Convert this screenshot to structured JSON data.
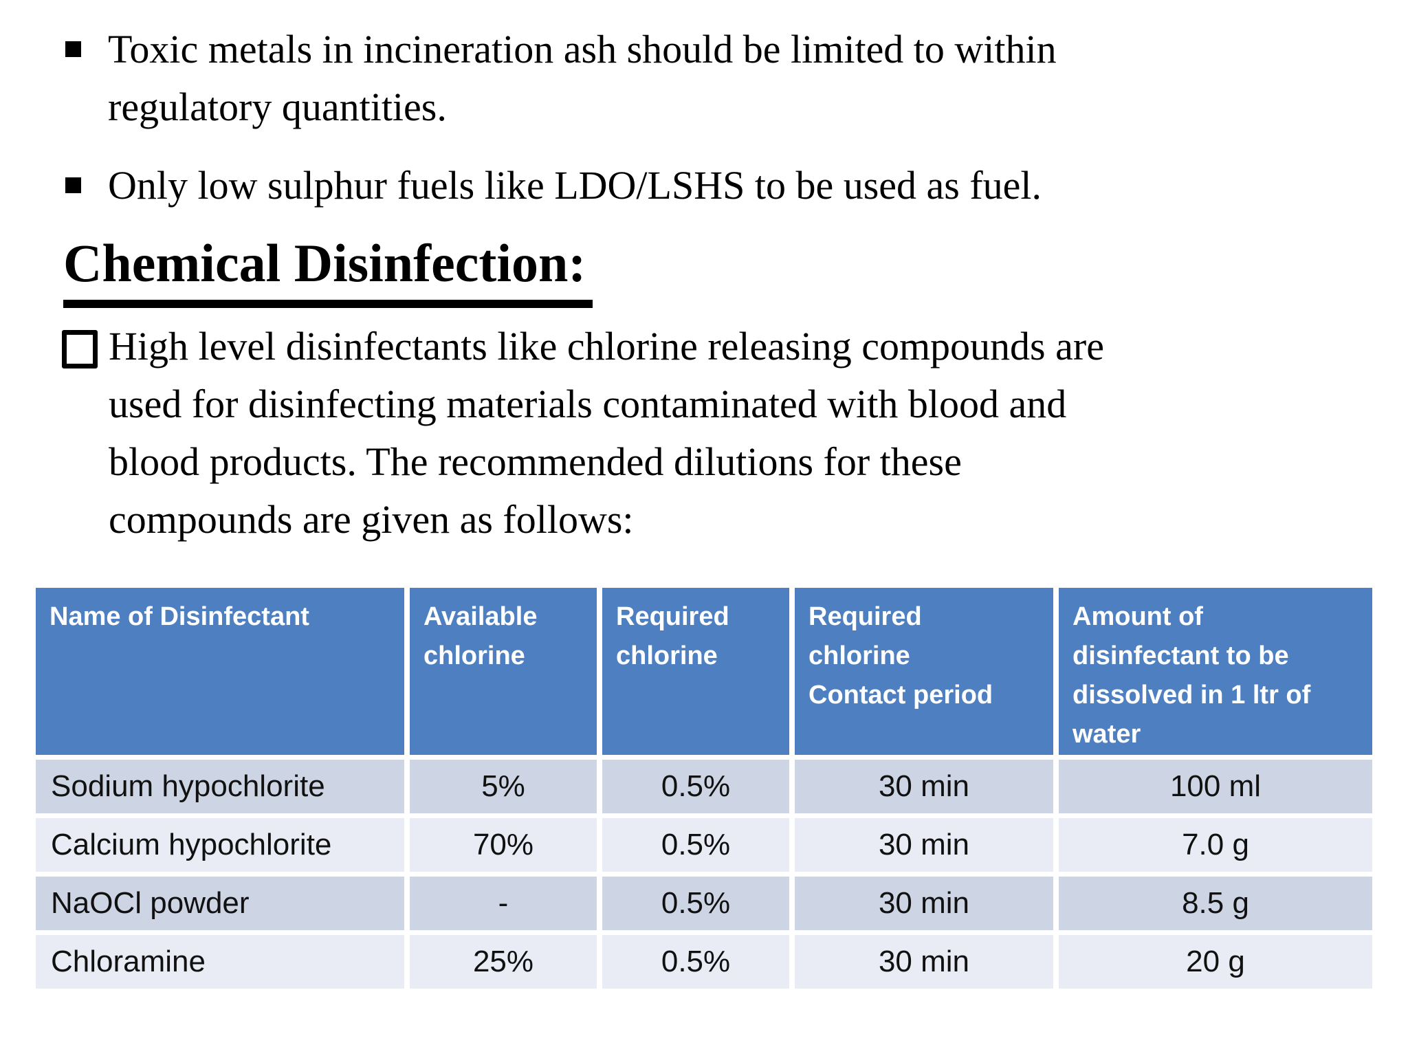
{
  "slide": {
    "bullets": [
      {
        "marker_icon": "square-bullet",
        "lines": [
          "Toxic metals in incineration ash should be limited to within",
          "regulatory quantities."
        ]
      },
      {
        "marker_icon": "square-bullet",
        "lines": [
          "Only low sulphur fuels like LDO/LSHS to be used as fuel."
        ]
      }
    ],
    "heading": "Chemical Disinfection:",
    "checklist": {
      "marker_icon": "open-checkbox-bullet",
      "lines": [
        "High level disinfectants like chlorine releasing compounds are",
        "used for disinfecting materials contaminated with blood and",
        "blood products. The recommended dilutions for these",
        "compounds are given as follows:"
      ]
    },
    "table": {
      "header_lines": [
        [
          "Name of Disinfectant"
        ],
        [
          "Available",
          "chlorine"
        ],
        [
          "Required",
          "chlorine"
        ],
        [
          "Required",
          "chlorine",
          "Contact period"
        ],
        [
          "Amount of",
          "disinfectant to be",
          "dissolved in 1 ltr of",
          "water"
        ]
      ],
      "rows": [
        [
          "Sodium hypochlorite",
          "5%",
          "0.5%",
          "30 min",
          "100 ml"
        ],
        [
          "Calcium hypochlorite",
          "70%",
          "0.5%",
          "30 min",
          "7.0 g"
        ],
        [
          "NaOCl powder",
          "-",
          "0.5%",
          "30 min",
          "8.5 g"
        ],
        [
          "Chloramine",
          "25%",
          "0.5%",
          "30 min",
          "20 g"
        ]
      ],
      "colors": {
        "header_bg": "#4e80c1",
        "header_text": "#ffffff",
        "row_odd_bg": "#cdd4e3",
        "row_even_bg": "#e9ecf5",
        "body_text": "#111111"
      }
    }
  }
}
